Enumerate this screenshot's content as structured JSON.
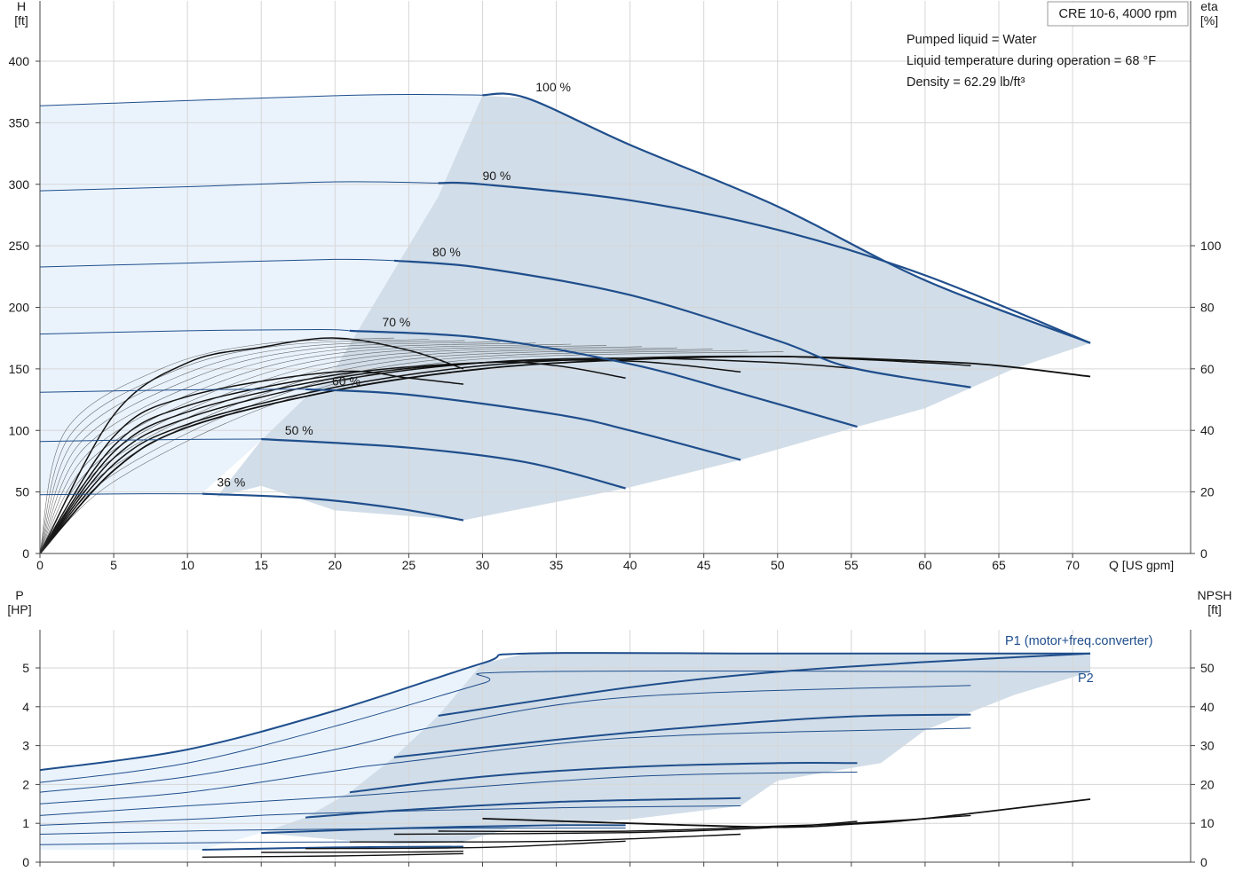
{
  "title_box": "CRE 10-6, 4000 rpm",
  "notes": [
    "Pumped liquid = Water",
    "Liquid temperature during operation = 68 °F",
    "Density = 62.29 lb/ft³"
  ],
  "colors": {
    "curve_blue": "#1f4e8c",
    "region_light": "#eaf3fc",
    "region_dark": "#d1dde8",
    "eff_black": "#111111",
    "grid": "#d6d6d6"
  },
  "chart_data": [
    {
      "type": "line",
      "name": "head-efficiency",
      "xlabel": "Q [US gpm]",
      "ylabel": "H [ft]",
      "ylabel_right": "eta [%]",
      "xlim": [
        0,
        78
      ],
      "ylim": [
        0,
        400
      ],
      "ylim_right": [
        0,
        100
      ],
      "x_ticks": [
        0,
        5,
        10,
        15,
        20,
        25,
        30,
        35,
        40,
        45,
        50,
        55,
        60,
        65,
        70
      ],
      "y_ticks": [
        0,
        50,
        100,
        150,
        200,
        250,
        300,
        350,
        400
      ],
      "y_right_ticks": [
        0,
        20,
        40,
        60,
        80,
        100
      ],
      "grid": true,
      "speed_curves": [
        {
          "label": "100 %",
          "label_x": 33.6,
          "label_y": 374,
          "points": [
            [
              0,
              363.8
            ],
            [
              10,
              368
            ],
            [
              20,
              372
            ],
            [
              25,
              373
            ],
            [
              30,
              372.5
            ],
            [
              33,
              370
            ],
            [
              40,
              332
            ],
            [
              50,
              282
            ],
            [
              60,
              222
            ],
            [
              71.2,
              171
            ]
          ]
        },
        {
          "label": "90 %",
          "label_x": 30,
          "label_y": 302,
          "points": [
            [
              0,
              294.7
            ],
            [
              10,
              298
            ],
            [
              20,
              302
            ],
            [
              27,
              301
            ],
            [
              30,
              300
            ],
            [
              40,
              287
            ],
            [
              50,
              263
            ],
            [
              60,
              226
            ],
            [
              71.2,
              171
            ]
          ]
        },
        {
          "label": "80 %",
          "label_x": 26.6,
          "label_y": 240,
          "points": [
            [
              0,
              232.8
            ],
            [
              10,
              236
            ],
            [
              20,
              239
            ],
            [
              24,
              238
            ],
            [
              30,
              232
            ],
            [
              40,
              210
            ],
            [
              50,
              173
            ],
            [
              55,
              151
            ],
            [
              63.1,
              135
            ]
          ]
        },
        {
          "label": "70 %",
          "label_x": 23.2,
          "label_y": 183,
          "points": [
            [
              0,
              178.3
            ],
            [
              10,
              181
            ],
            [
              19,
              182
            ],
            [
              21,
              181
            ],
            [
              30,
              175
            ],
            [
              40,
              154
            ],
            [
              47.5,
              130
            ],
            [
              55.4,
              103
            ]
          ]
        },
        {
          "label": "60 %",
          "label_x": 19.8,
          "label_y": 135,
          "points": [
            [
              0,
              131
            ],
            [
              10,
              133
            ],
            [
              18,
              133.5
            ],
            [
              25,
              129
            ],
            [
              35,
              113
            ],
            [
              40,
              100
            ],
            [
              47.5,
              76
            ]
          ]
        },
        {
          "label": "50 %",
          "label_x": 16.6,
          "label_y": 95,
          "points": [
            [
              0,
              91
            ],
            [
              8,
              92.5
            ],
            [
              15,
              93
            ],
            [
              25,
              86
            ],
            [
              33,
              74
            ],
            [
              39.7,
              53
            ]
          ]
        },
        {
          "label": "36 %",
          "label_x": 12,
          "label_y": 53,
          "points": [
            [
              0,
              47.7
            ],
            [
              6,
              48.5
            ],
            [
              11,
              48.5
            ],
            [
              18,
              45
            ],
            [
              24,
              37
            ],
            [
              28.7,
              27
            ]
          ]
        }
      ],
      "efficiency_curves_eta_percent": [
        {
          "name": "100 %",
          "points": [
            [
              0,
              0
            ],
            [
              5,
              27
            ],
            [
              10,
              41
            ],
            [
              20,
              53
            ],
            [
              30,
              60
            ],
            [
              40,
              63
            ],
            [
              50,
              64
            ],
            [
              60,
              62.5
            ],
            [
              65,
              61
            ],
            [
              71.2,
              57.5
            ]
          ]
        },
        {
          "name": "90 %",
          "points": [
            [
              0,
              0
            ],
            [
              5,
              29
            ],
            [
              10,
              42
            ],
            [
              20,
              54
            ],
            [
              30,
              61
            ],
            [
              40,
              63.5
            ],
            [
              50,
              64
            ],
            [
              60,
              62
            ],
            [
              63.1,
              61
            ]
          ]
        },
        {
          "name": "80 %",
          "points": [
            [
              0,
              0
            ],
            [
              5,
              31
            ],
            [
              10,
              44
            ],
            [
              20,
              56
            ],
            [
              30,
              62
            ],
            [
              40,
              63.5
            ],
            [
              50,
              62
            ],
            [
              55.4,
              60
            ]
          ]
        },
        {
          "name": "70 %",
          "points": [
            [
              0,
              0
            ],
            [
              5,
              33
            ],
            [
              10,
              46
            ],
            [
              20,
              57
            ],
            [
              30,
              62
            ],
            [
              40,
              62.5
            ],
            [
              47.5,
              59
            ]
          ]
        },
        {
          "name": "60 %",
          "points": [
            [
              0,
              0
            ],
            [
              5,
              35
            ],
            [
              10,
              48
            ],
            [
              20,
              58
            ],
            [
              30,
              62
            ],
            [
              35,
              61
            ],
            [
              39.7,
              57
            ]
          ]
        },
        {
          "name": "50 %",
          "points": [
            [
              0,
              0
            ],
            [
              5,
              38
            ],
            [
              10,
              51
            ],
            [
              20,
              59
            ],
            [
              25,
              57
            ],
            [
              28.7,
              55
            ]
          ]
        },
        {
          "name": "36 %",
          "points": [
            [
              0,
              0
            ],
            [
              5,
              45
            ],
            [
              10,
              62
            ],
            [
              15,
              67
            ],
            [
              20,
              70
            ],
            [
              25,
              66
            ],
            [
              28.7,
              60
            ]
          ]
        }
      ]
    },
    {
      "type": "line",
      "name": "power-npsh",
      "xlabel": "Q [US gpm]",
      "ylabel": "P [HP]",
      "ylabel_right": "NPSH [ft]",
      "xlim": [
        0,
        78
      ],
      "ylim": [
        0,
        6
      ],
      "ylim_right": [
        0,
        60
      ],
      "y_ticks": [
        0,
        1,
        2,
        3,
        4,
        5
      ],
      "y_right_ticks": [
        0,
        10,
        20,
        30,
        40,
        50
      ],
      "grid": true,
      "series_labels": [
        "P1 (motor+freq.converter)",
        "P2"
      ],
      "p1_curves": [
        {
          "speed": "100 %",
          "points": [
            [
              0,
              2.37
            ],
            [
              10,
              2.9
            ],
            [
              20,
              3.9
            ],
            [
              30,
              5.12
            ],
            [
              33,
              5.37
            ],
            [
              50,
              5.37
            ],
            [
              71.2,
              5.37
            ]
          ]
        },
        {
          "speed": "90 %",
          "points": [
            [
              27,
              3.77
            ],
            [
              40,
              4.5
            ],
            [
              50,
              4.9
            ],
            [
              60,
              5.15
            ],
            [
              71.2,
              5.37
            ]
          ]
        },
        {
          "speed": "80 %",
          "points": [
            [
              24,
              2.7
            ],
            [
              35,
              3.15
            ],
            [
              45,
              3.5
            ],
            [
              55,
              3.75
            ],
            [
              63.1,
              3.8
            ]
          ]
        },
        {
          "speed": "70 %",
          "points": [
            [
              21,
              1.8
            ],
            [
              30,
              2.2
            ],
            [
              40,
              2.45
            ],
            [
              50,
              2.55
            ],
            [
              55.4,
              2.55
            ]
          ]
        },
        {
          "speed": "60 %",
          "points": [
            [
              18,
              1.15
            ],
            [
              25,
              1.35
            ],
            [
              35,
              1.55
            ],
            [
              47.5,
              1.65
            ]
          ]
        },
        {
          "speed": "50 %",
          "points": [
            [
              15,
              0.75
            ],
            [
              25,
              0.88
            ],
            [
              35,
              0.95
            ],
            [
              39.7,
              0.95
            ]
          ]
        },
        {
          "speed": "36 %",
          "points": [
            [
              11,
              0.32
            ],
            [
              20,
              0.38
            ],
            [
              28.7,
              0.4
            ]
          ]
        }
      ],
      "p2_curves": [
        {
          "speed": "100 %",
          "points": [
            [
              0,
              2.05
            ],
            [
              10,
              2.55
            ],
            [
              20,
              3.5
            ],
            [
              30,
              4.6
            ],
            [
              33,
              4.9
            ],
            [
              71.2,
              4.9
            ]
          ]
        },
        {
          "speed": "90 %",
          "points": [
            [
              0,
              1.8
            ],
            [
              10,
              2.2
            ],
            [
              20,
              2.9
            ],
            [
              27,
              3.5
            ],
            [
              40,
              4.25
            ],
            [
              63.1,
              4.55
            ]
          ]
        },
        {
          "speed": "80 %",
          "points": [
            [
              0,
              1.5
            ],
            [
              10,
              1.8
            ],
            [
              20,
              2.35
            ],
            [
              24,
              2.55
            ],
            [
              40,
              3.2
            ],
            [
              63.1,
              3.45
            ]
          ]
        },
        {
          "speed": "70 %",
          "points": [
            [
              0,
              1.2
            ],
            [
              10,
              1.45
            ],
            [
              21,
              1.7
            ],
            [
              40,
              2.2
            ],
            [
              55.4,
              2.32
            ]
          ]
        },
        {
          "speed": "60 %",
          "points": [
            [
              0,
              0.95
            ],
            [
              10,
              1.1
            ],
            [
              18,
              1.25
            ],
            [
              35,
              1.4
            ],
            [
              47.5,
              1.45
            ]
          ]
        },
        {
          "speed": "50 %",
          "points": [
            [
              0,
              0.72
            ],
            [
              10,
              0.8
            ],
            [
              15,
              0.83
            ],
            [
              30,
              0.88
            ],
            [
              39.7,
              0.88
            ]
          ]
        },
        {
          "speed": "36 %",
          "points": [
            [
              0,
              0.45
            ],
            [
              11,
              0.5
            ],
            [
              20,
              0.52
            ],
            [
              28.7,
              0.53
            ]
          ]
        }
      ],
      "npsh_curves_ft": [
        {
          "speed": "100 %",
          "points": [
            [
              30,
              11.2
            ],
            [
              40,
              10
            ],
            [
              50,
              9
            ],
            [
              55,
              9.8
            ],
            [
              60,
              11.2
            ],
            [
              71.2,
              16.2
            ]
          ]
        },
        {
          "speed": "90 %",
          "points": [
            [
              27,
              8
            ],
            [
              40,
              8
            ],
            [
              50,
              9.3
            ],
            [
              55,
              10
            ],
            [
              63.1,
              12
            ]
          ]
        },
        {
          "speed": "80 %",
          "points": [
            [
              24,
              7.2
            ],
            [
              40,
              7.6
            ],
            [
              50,
              9
            ],
            [
              55.4,
              10.5
            ]
          ]
        },
        {
          "speed": "70 %",
          "points": [
            [
              21,
              5.2
            ],
            [
              35,
              5.4
            ],
            [
              47.5,
              7.2
            ]
          ]
        },
        {
          "speed": "60 %",
          "points": [
            [
              18,
              3.5
            ],
            [
              30,
              3.8
            ],
            [
              39.7,
              5.4
            ]
          ]
        },
        {
          "speed": "50 %",
          "points": [
            [
              15,
              2.5
            ],
            [
              25,
              2.6
            ],
            [
              28.7,
              2.8
            ]
          ]
        },
        {
          "speed": "36 %",
          "points": [
            [
              11,
              1.3
            ],
            [
              20,
              1.6
            ],
            [
              28.7,
              2.2
            ]
          ]
        }
      ]
    }
  ]
}
